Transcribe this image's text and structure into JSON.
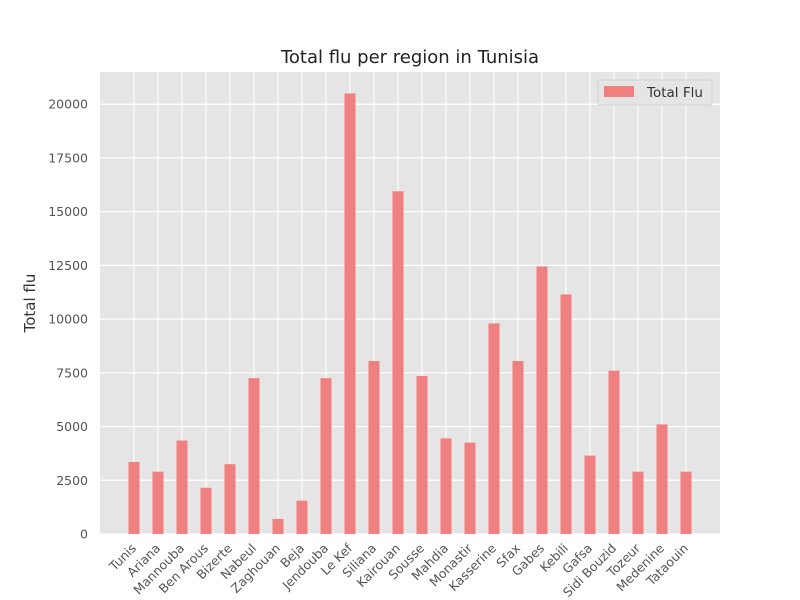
{
  "chart_data": {
    "type": "bar",
    "title": "Total flu per region in Tunisia",
    "xlabel": "",
    "ylabel": "Total flu",
    "ylim": [
      0,
      21500
    ],
    "yticks": [
      0,
      2500,
      5000,
      7500,
      10000,
      12500,
      15000,
      17500,
      20000
    ],
    "grid": true,
    "legend_position": "top-right",
    "categories": [
      "Tunis",
      "Ariana",
      "Mannouba",
      "Ben Arous",
      "Bizerte",
      "Nabeul",
      "Zaghouan",
      "Beja",
      "Jendouba",
      "Le Kef",
      "Siliana",
      "Kairouan",
      "Sousse",
      "Mahdia",
      "Monastir",
      "Kasserine",
      "Sfax",
      "Gabes",
      "Kebili",
      "Gafsa",
      "Sidi Bouzid",
      "Tozeur",
      "Medenine",
      "Tataouin"
    ],
    "series": [
      {
        "name": "Total Flu",
        "color": "#f08080",
        "values": [
          3350,
          2900,
          4350,
          2150,
          3250,
          7250,
          700,
          1550,
          7250,
          20500,
          8050,
          15950,
          7350,
          4450,
          4250,
          9800,
          8050,
          12450,
          11150,
          3650,
          7600,
          2900,
          5100,
          2900
        ]
      }
    ]
  },
  "colors": {
    "axes_background": "#e5e5e5",
    "grid": "#ffffff",
    "bar": "#f08080"
  }
}
